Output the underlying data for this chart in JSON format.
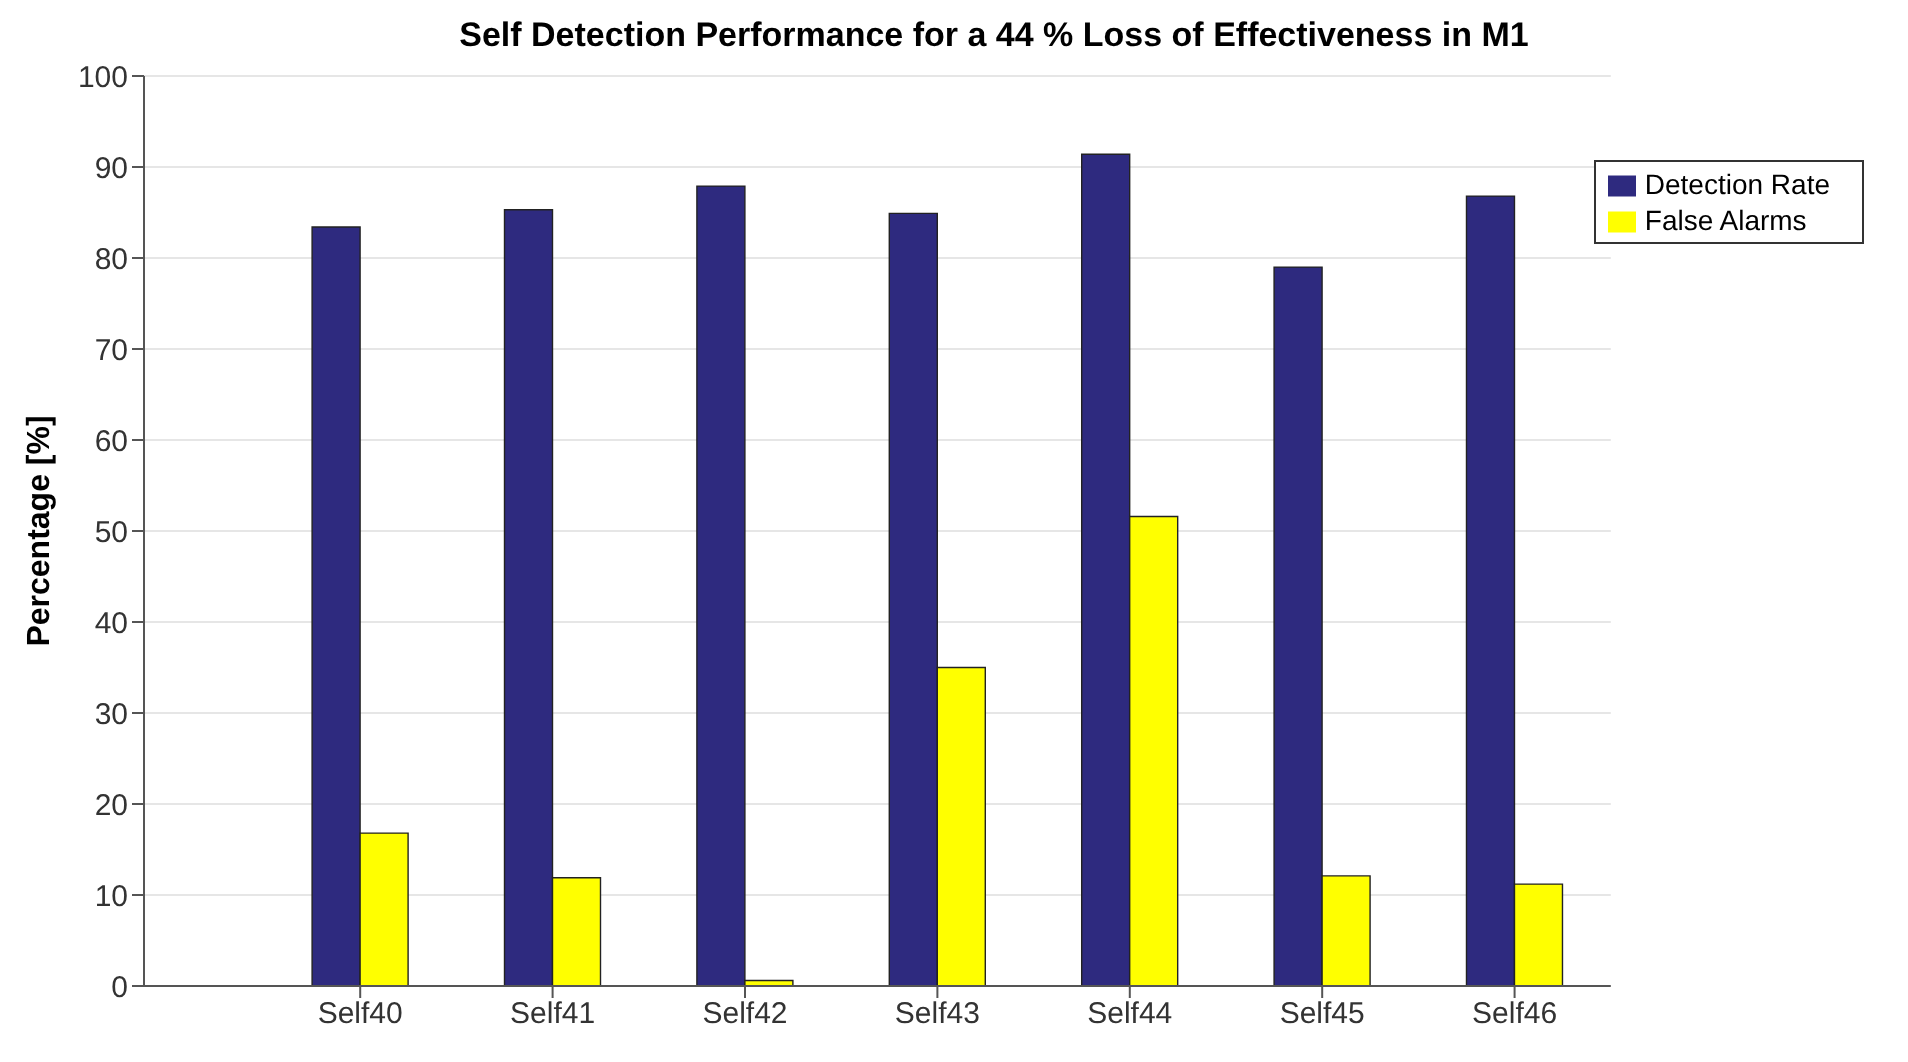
{
  "chart_data": {
    "type": "bar",
    "title": "Self Detection Performance for a 44 % Loss of Effectiveness in M1",
    "ylabel": "Percentage [%]",
    "categories": [
      "Self40",
      "Self41",
      "Self42",
      "Self43",
      "Self44",
      "Self45",
      "Self46"
    ],
    "series": [
      {
        "name": "Detection Rate",
        "color": "#2e2a7f",
        "values": [
          83.4,
          85.3,
          87.9,
          84.9,
          91.4,
          79.0,
          86.8
        ]
      },
      {
        "name": "False Alarms",
        "color": "#ffff00",
        "values": [
          16.8,
          11.9,
          0.6,
          35.0,
          51.6,
          12.1,
          11.2
        ]
      }
    ],
    "ylim": [
      0,
      100
    ],
    "yticks": [
      0,
      10,
      20,
      30,
      40,
      50,
      60,
      70,
      80,
      90,
      100
    ],
    "grid": "y",
    "legend": "top right"
  }
}
